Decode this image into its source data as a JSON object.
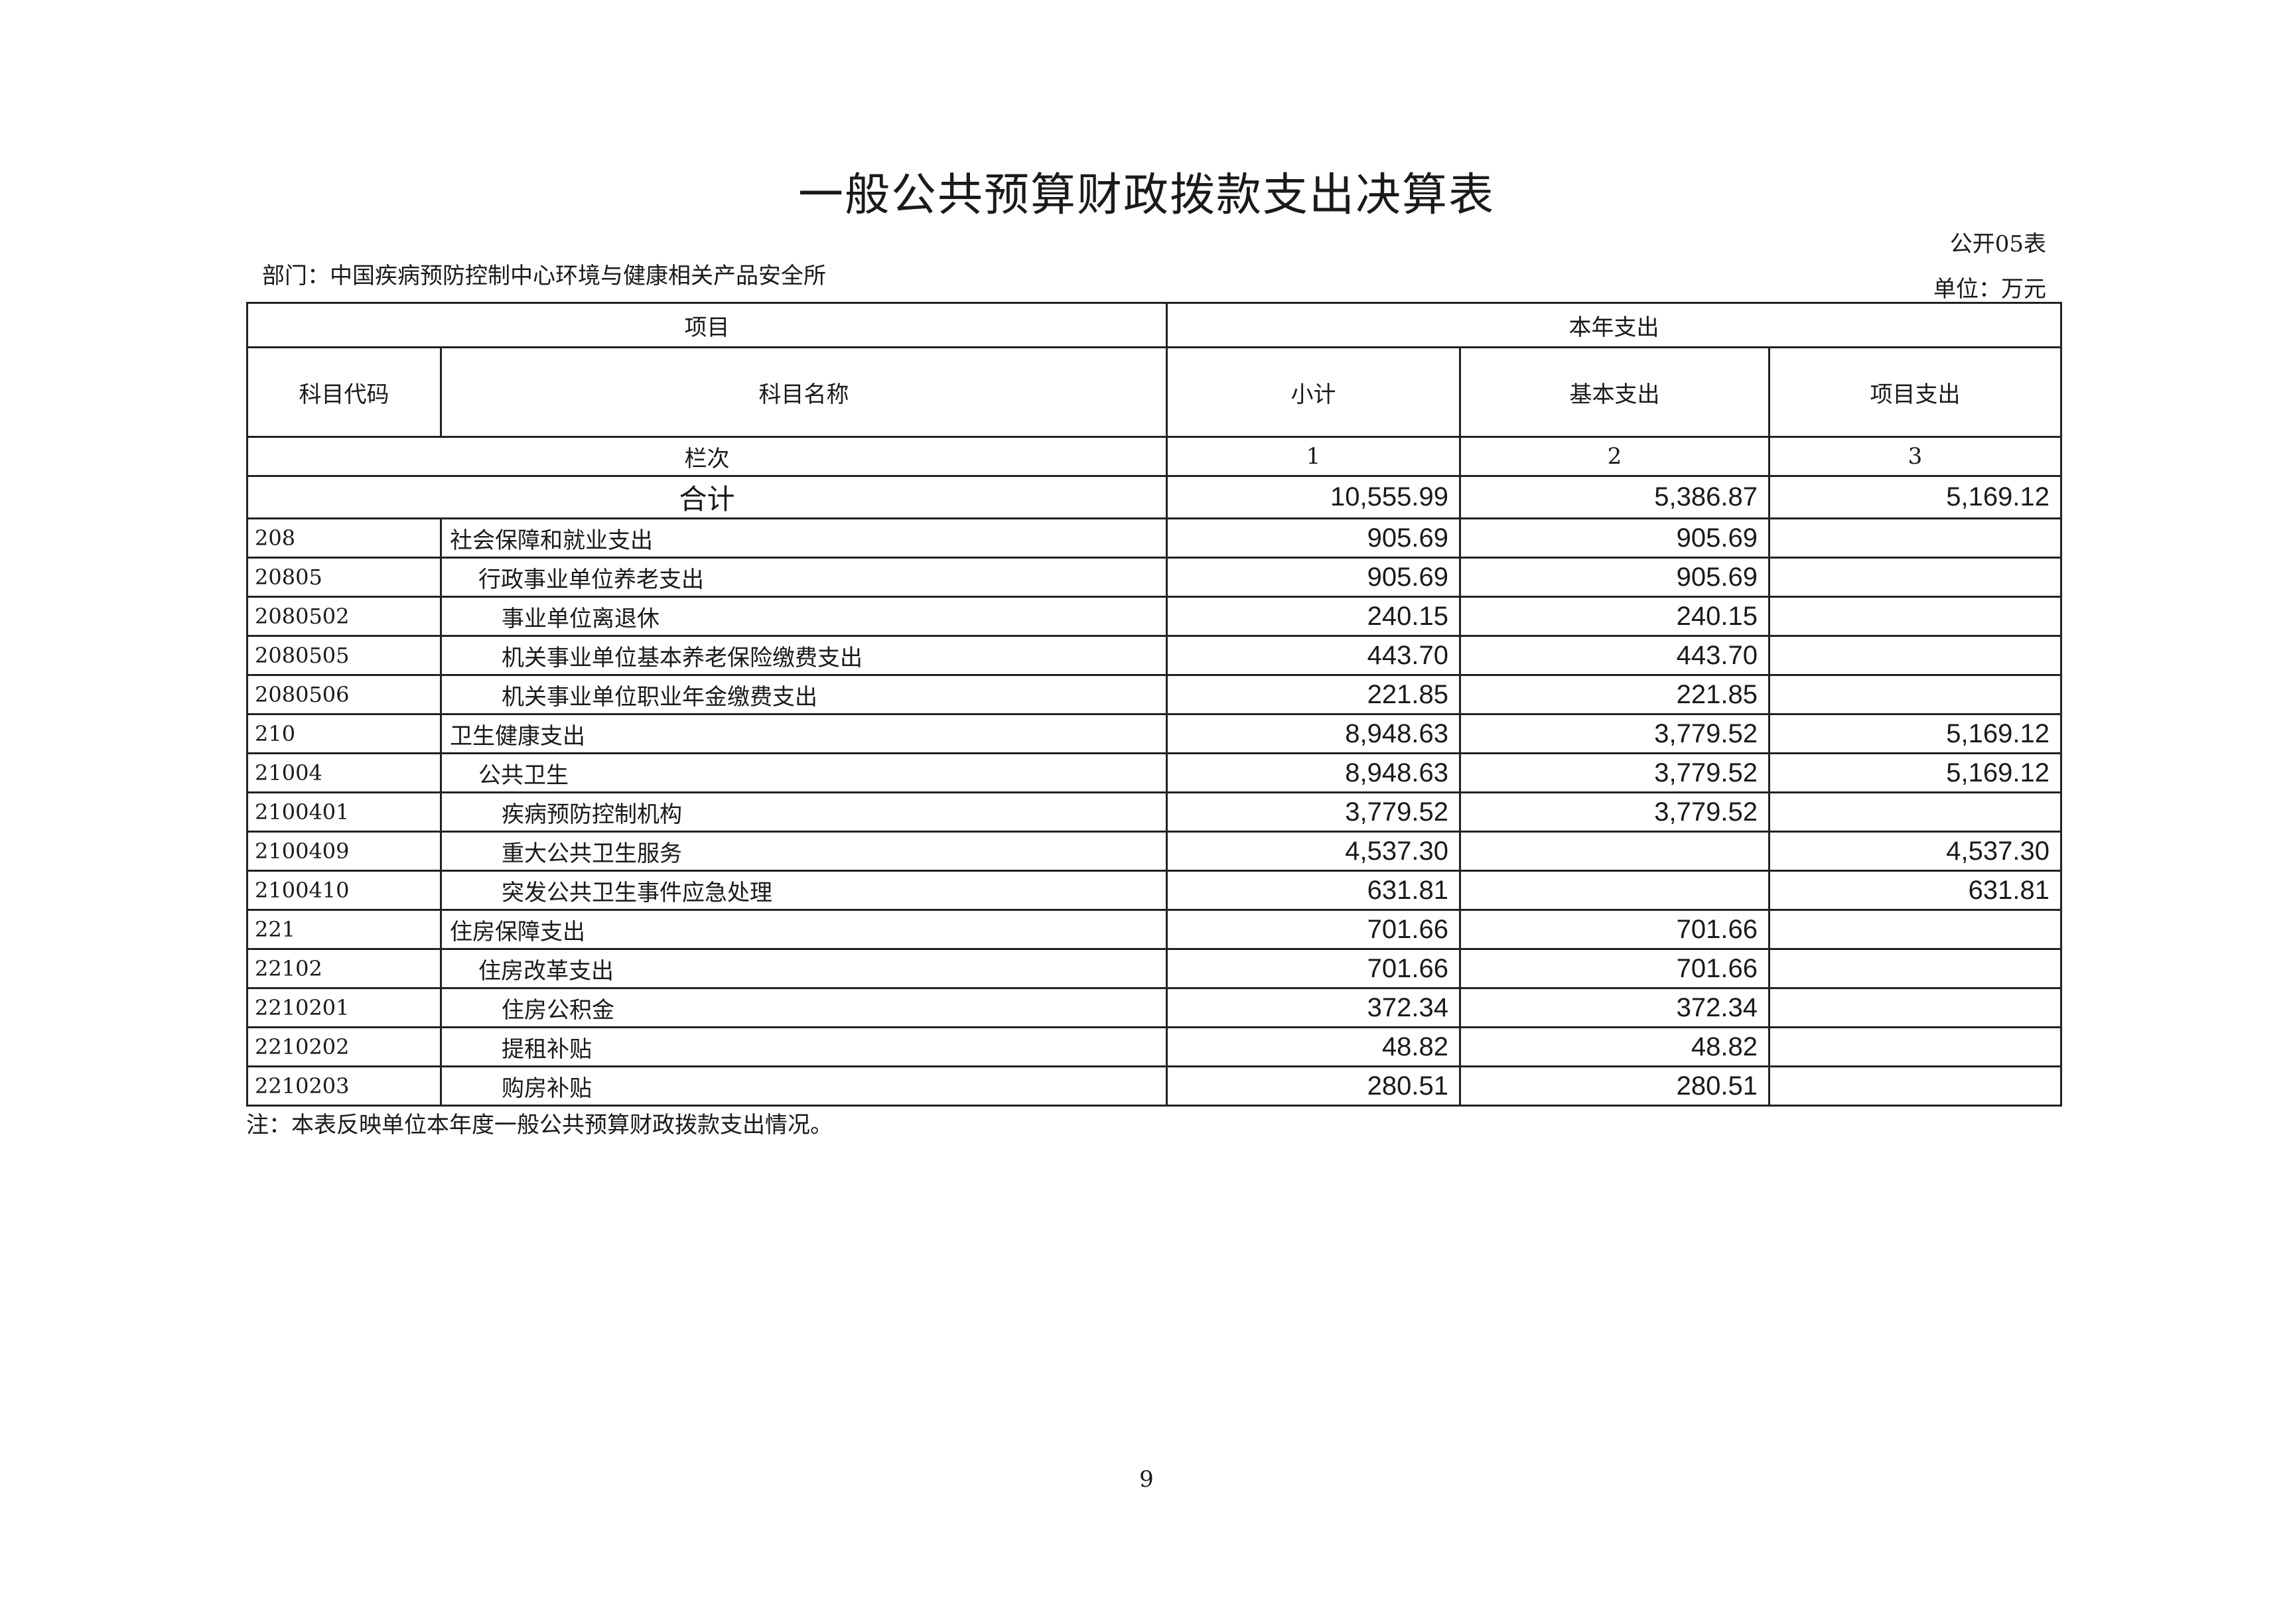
{
  "title": "一般公共预算财政拨款支出决算表",
  "table_no": "公开05表",
  "department": "部门：中国疾病预防控制中心环境与健康相关产品安全所",
  "unit": "单位：万元",
  "header": {
    "item": "项目",
    "current_year": "本年支出",
    "code": "科目代码",
    "name": "科目名称",
    "subtotal": "小计",
    "basic": "基本支出",
    "project": "项目支出",
    "column_index": "栏次",
    "col1": "1",
    "col2": "2",
    "col3": "3"
  },
  "total": {
    "label": "合计",
    "subtotal": "10,555.99",
    "basic": "5,386.87",
    "project": "5,169.12"
  },
  "rows": [
    {
      "code": "208",
      "name": "社会保障和就业支出",
      "level": 1,
      "subtotal": "905.69",
      "basic": "905.69",
      "project": ""
    },
    {
      "code": "20805",
      "name": "行政事业单位养老支出",
      "level": 2,
      "subtotal": "905.69",
      "basic": "905.69",
      "project": ""
    },
    {
      "code": "2080502",
      "name": "事业单位离退休",
      "level": 3,
      "subtotal": "240.15",
      "basic": "240.15",
      "project": ""
    },
    {
      "code": "2080505",
      "name": "机关事业单位基本养老保险缴费支出",
      "level": 3,
      "subtotal": "443.70",
      "basic": "443.70",
      "project": ""
    },
    {
      "code": "2080506",
      "name": "机关事业单位职业年金缴费支出",
      "level": 3,
      "subtotal": "221.85",
      "basic": "221.85",
      "project": ""
    },
    {
      "code": "210",
      "name": "卫生健康支出",
      "level": 1,
      "subtotal": "8,948.63",
      "basic": "3,779.52",
      "project": "5,169.12"
    },
    {
      "code": "21004",
      "name": "公共卫生",
      "level": 2,
      "subtotal": "8,948.63",
      "basic": "3,779.52",
      "project": "5,169.12"
    },
    {
      "code": "2100401",
      "name": "疾病预防控制机构",
      "level": 3,
      "subtotal": "3,779.52",
      "basic": "3,779.52",
      "project": ""
    },
    {
      "code": "2100409",
      "name": "重大公共卫生服务",
      "level": 3,
      "subtotal": "4,537.30",
      "basic": "",
      "project": "4,537.30"
    },
    {
      "code": "2100410",
      "name": "突发公共卫生事件应急处理",
      "level": 3,
      "subtotal": "631.81",
      "basic": "",
      "project": "631.81"
    },
    {
      "code": "221",
      "name": "住房保障支出",
      "level": 1,
      "subtotal": "701.66",
      "basic": "701.66",
      "project": ""
    },
    {
      "code": "22102",
      "name": "住房改革支出",
      "level": 2,
      "subtotal": "701.66",
      "basic": "701.66",
      "project": ""
    },
    {
      "code": "2210201",
      "name": "住房公积金",
      "level": 3,
      "subtotal": "372.34",
      "basic": "372.34",
      "project": ""
    },
    {
      "code": "2210202",
      "name": "提租补贴",
      "level": 3,
      "subtotal": "48.82",
      "basic": "48.82",
      "project": ""
    },
    {
      "code": "2210203",
      "name": "购房补贴",
      "level": 3,
      "subtotal": "280.51",
      "basic": "280.51",
      "project": ""
    }
  ],
  "note": "注：本表反映单位本年度一般公共预算财政拨款支出情况。",
  "page_number": "9"
}
